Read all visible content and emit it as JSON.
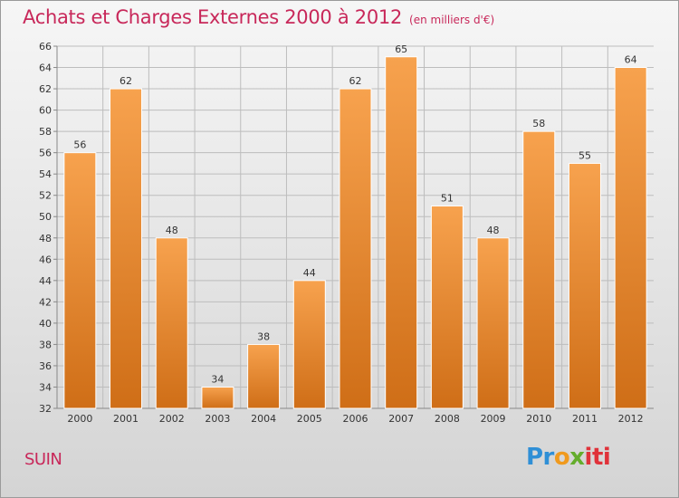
{
  "header": {
    "title": "Achats et Charges Externes 2000 à 2012",
    "subtitle": "(en milliers d'€)"
  },
  "footer": {
    "commune": "SUIN",
    "logo_parts": [
      "Pr",
      "o",
      "x",
      "iti"
    ]
  },
  "colors": {
    "accent": "#c8285a",
    "bar_top": "#f7a24e",
    "bar_bottom": "#cf6e17",
    "grid": "#bdbdbd"
  },
  "chart_data": {
    "type": "bar",
    "title": "Achats et Charges Externes 2000 à 2012",
    "subtitle": "(en milliers d'€)",
    "xlabel": "",
    "ylabel": "",
    "categories": [
      "2000",
      "2001",
      "2002",
      "2003",
      "2004",
      "2005",
      "2006",
      "2007",
      "2008",
      "2009",
      "2010",
      "2011",
      "2012"
    ],
    "values": [
      56,
      62,
      48,
      34,
      38,
      44,
      62,
      65,
      51,
      48,
      58,
      55,
      64
    ],
    "ylim": [
      32,
      66
    ],
    "yticks": [
      32,
      34,
      36,
      38,
      40,
      42,
      44,
      46,
      48,
      50,
      52,
      54,
      56,
      58,
      60,
      62,
      64,
      66
    ],
    "grid": true,
    "legend": "none"
  }
}
